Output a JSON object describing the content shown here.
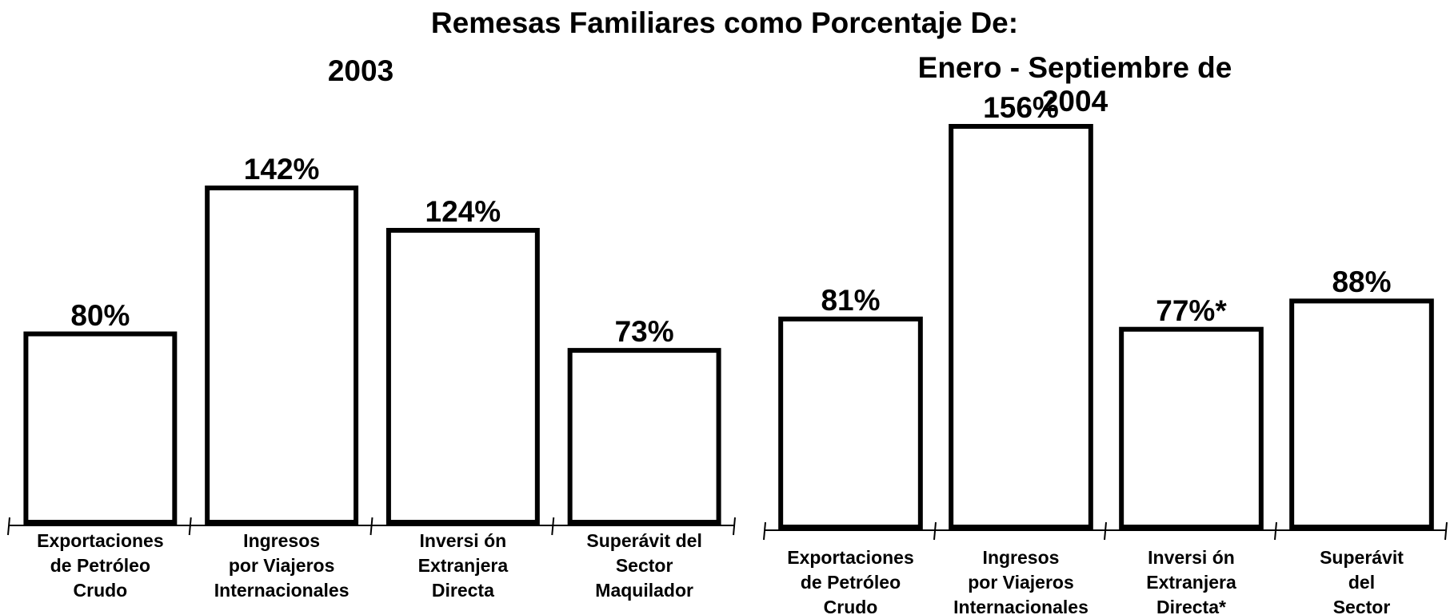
{
  "title": "Remesas Familiares como Porcentaje De:",
  "chart_data": [
    {
      "type": "bar",
      "title": "2003",
      "categories": [
        "Exportaciones\nde Petróleo\nCrudo",
        "Ingresos\npor Viajeros\nInternacionales",
        "Inversi ón\nExtranjera\nDirecta",
        "Superávit del\nSector\nMaquilador"
      ],
      "values": [
        80,
        142,
        124,
        73
      ],
      "value_labels": [
        "80%",
        "142%",
        "124%",
        "73%"
      ],
      "color": "#ffffff"
    },
    {
      "type": "bar",
      "title": "Enero - Septiembre de 2004",
      "categories": [
        "Exportaciones\nde Petróleo\nCrudo",
        "Ingresos\npor Viajeros\nInternacionales",
        "Inversi ón\nExtranjera\nDirecta*",
        "Superávit del\nSector\nMaquilador"
      ],
      "values": [
        81,
        156,
        77,
        88
      ],
      "value_labels": [
        "81%",
        "156%",
        "77%*",
        "88%"
      ],
      "color": "#ffffff"
    }
  ]
}
